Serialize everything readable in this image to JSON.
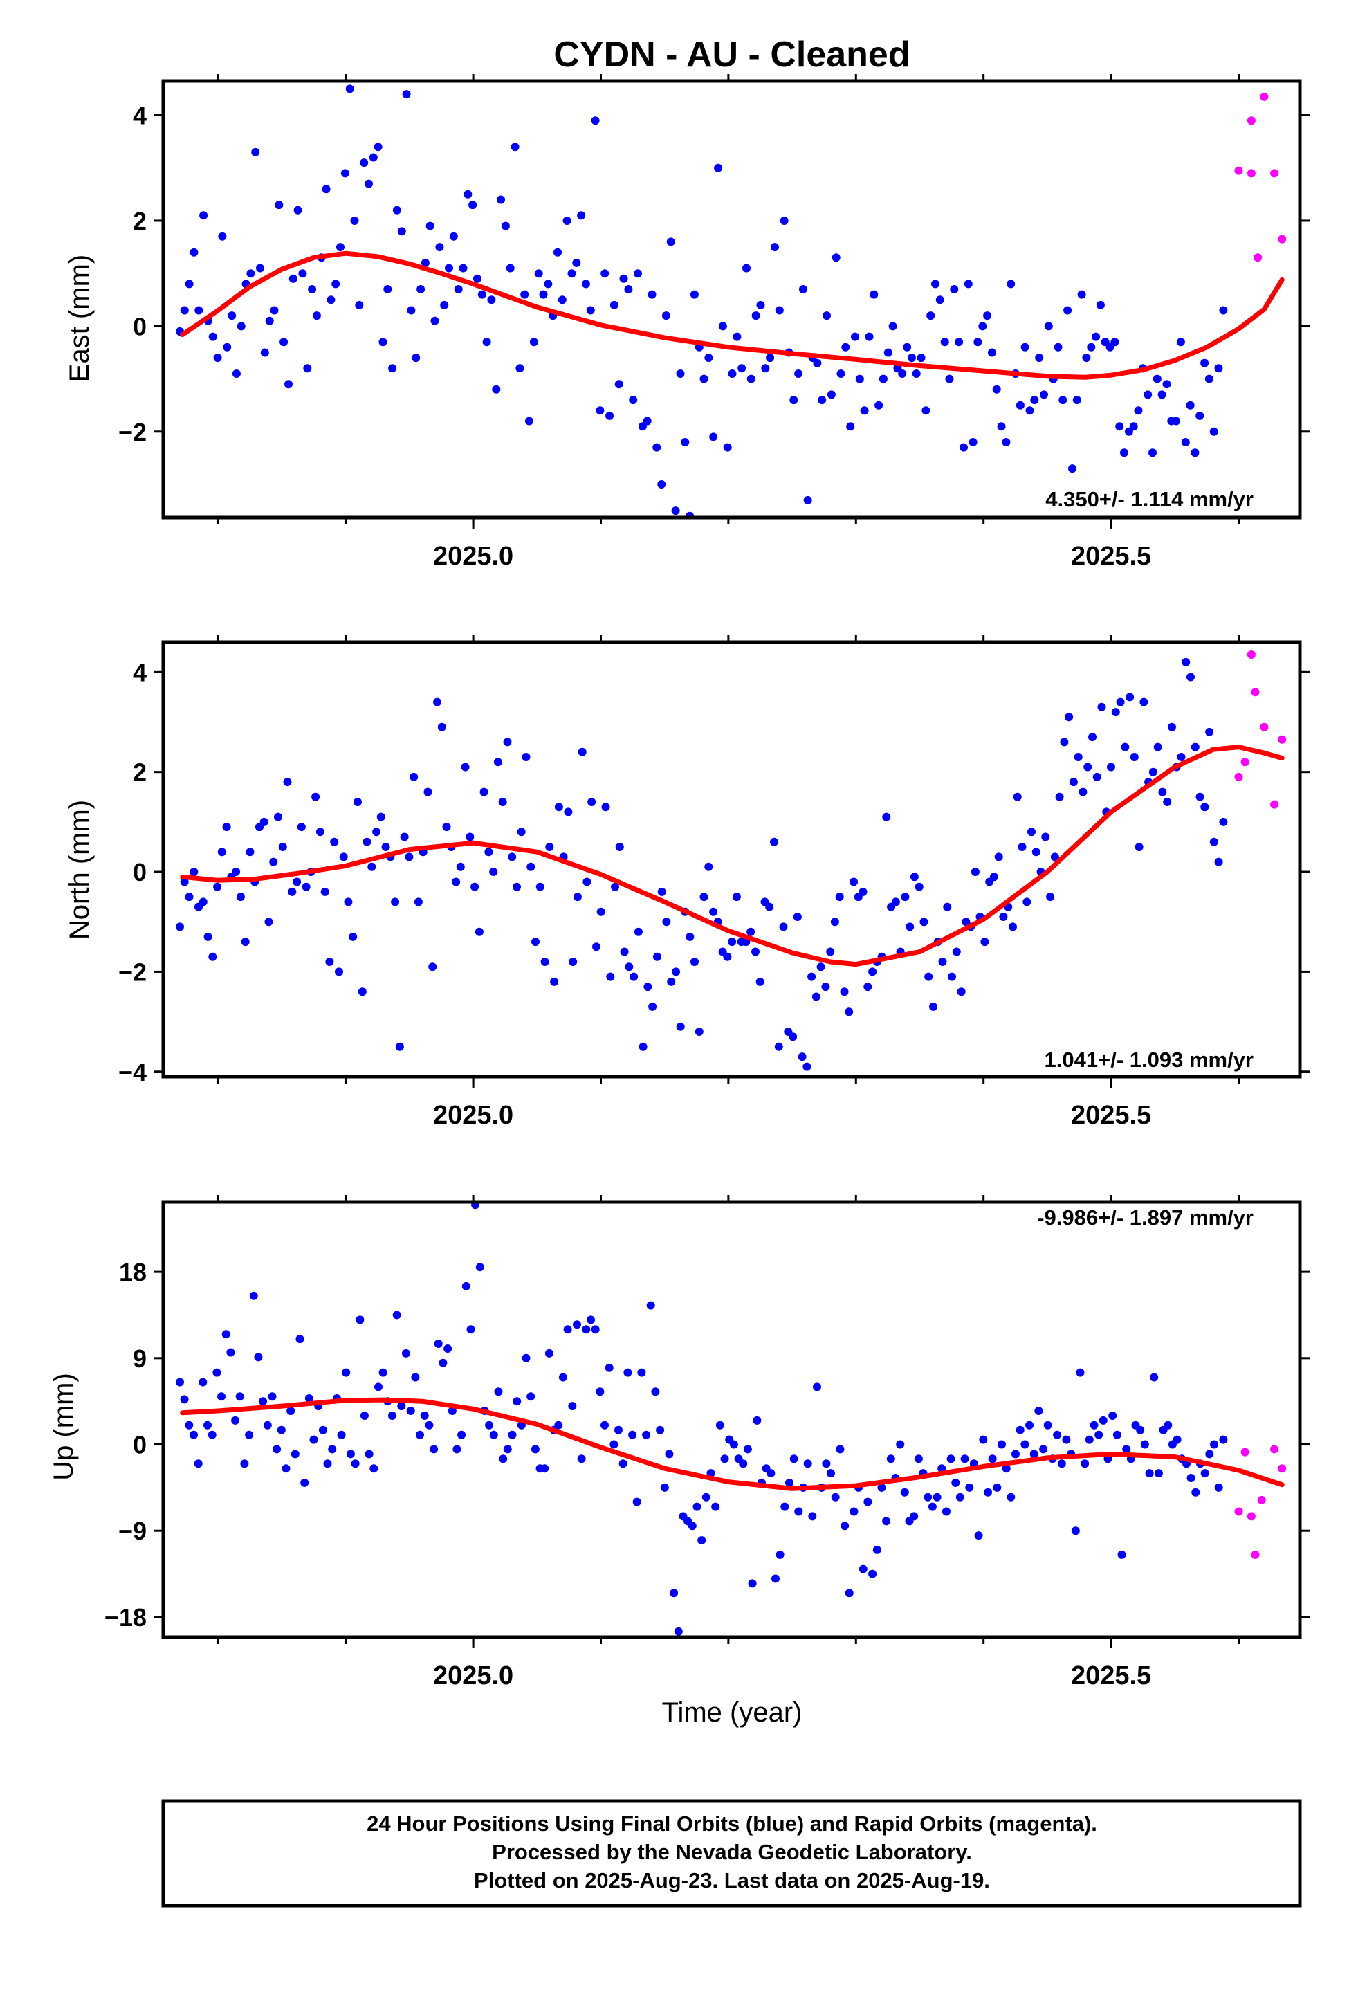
{
  "title": "CYDN  - AU - Cleaned",
  "xlabel": "Time (year)",
  "footer": {
    "line1": "24 Hour Positions Using Final Orbits (blue) and Rapid Orbits (magenta).",
    "line2": "Processed by the Nevada Geodetic Laboratory.",
    "line3": "Plotted on 2025-Aug-23. Last data on 2025-Aug-19."
  },
  "colors": {
    "final": "#0000ff",
    "rapid": "#ff00ff",
    "fit": "#ff0000",
    "frame": "#000000"
  },
  "chart_data": [
    {
      "type": "scatter",
      "name": "east",
      "ylabel": "East (mm)",
      "rate_text": "4.350+/- 1.114 mm/yr",
      "rate_position": "bottom-right",
      "xlim": [
        24.757,
        25.648
      ],
      "ylim": [
        -3.63,
        4.65
      ],
      "yticks": [
        4,
        2,
        0,
        -2
      ],
      "xticks": [
        25.0,
        25.5
      ],
      "xtick_labels": [
        "2025.0",
        "2025.5"
      ],
      "final_y": [
        -0.1,
        0.3,
        0.8,
        1.4,
        0.3,
        2.1,
        0.1,
        -0.2,
        -0.6,
        1.7,
        -0.4,
        0.2,
        -0.9,
        0.0,
        0.8,
        1.0,
        3.3,
        1.1,
        -0.5,
        0.1,
        0.3,
        2.3,
        -0.3,
        -1.1,
        0.9,
        2.2,
        1.0,
        -0.8,
        0.7,
        0.2,
        1.3,
        2.6,
        0.5,
        0.8,
        1.5,
        2.9,
        4.5,
        2.0,
        0.4,
        3.1,
        2.7,
        3.2,
        3.4,
        -0.3,
        0.7,
        -0.8,
        2.2,
        1.8,
        4.4,
        0.3,
        -0.6,
        0.7,
        1.2,
        1.9,
        0.1,
        1.5,
        0.4,
        1.1,
        1.7,
        0.7,
        1.1,
        2.5,
        2.3,
        0.9,
        0.6,
        -0.3,
        0.5,
        -1.2,
        2.4,
        1.9,
        1.1,
        3.4,
        -0.8,
        0.6,
        -1.8,
        -0.3,
        1.0,
        0.6,
        0.8,
        0.2,
        1.4,
        0.5,
        2.0,
        1.0,
        1.2,
        2.1,
        0.8,
        0.3,
        3.9,
        -1.6,
        1.0,
        -1.7,
        0.4,
        -1.1,
        0.9,
        0.7,
        -1.4,
        1.0,
        -1.9,
        -1.8,
        0.6,
        -2.3,
        -3.0,
        0.2,
        1.6,
        -3.5,
        -0.9,
        -2.2,
        -3.6,
        0.6,
        -0.4,
        -1.0,
        -0.6,
        -2.1,
        3.0,
        0.0,
        -2.3,
        -0.9,
        -0.2,
        -0.8,
        1.1,
        -1.0,
        0.2,
        0.4,
        -0.8,
        -0.6,
        1.5,
        0.3,
        2.0,
        -0.5,
        -1.4,
        -0.9,
        0.7,
        -3.3,
        -0.6,
        -0.7,
        -1.4,
        0.2,
        -1.3,
        1.3,
        -0.9,
        -0.4,
        -1.9,
        -0.2,
        -1.0,
        -1.6,
        -0.2,
        0.6,
        -1.5,
        -1.0,
        -0.5,
        0.0,
        -0.8,
        -0.9,
        -0.4,
        -0.6,
        -0.9,
        -0.6,
        -1.6,
        0.2,
        0.8,
        0.5,
        -0.3,
        -1.0,
        0.7,
        -0.3,
        -2.3,
        0.8,
        -2.2,
        -0.3,
        0.0,
        0.2,
        -0.5,
        -1.2,
        -1.9,
        -2.2,
        0.8,
        -0.9,
        -1.5,
        -0.4,
        -1.6,
        -1.4,
        -0.6,
        -1.3,
        0.0,
        -1.0,
        -0.4,
        -1.4,
        0.3,
        -2.7,
        -1.4,
        0.6,
        -0.6,
        -0.4,
        -0.2,
        0.4,
        -0.3,
        -0.4,
        -0.3,
        -1.9,
        -2.4,
        -2.0,
        -1.9,
        -1.6,
        -0.8,
        -1.3,
        -2.4,
        -1.0,
        -1.3,
        -1.1,
        -1.8,
        -1.8,
        -0.3,
        -2.2,
        -1.5,
        -2.4,
        -1.7,
        -0.7,
        -1.0,
        -2.0,
        -0.8,
        0.3
      ],
      "rapid": [
        {
          "x": 25.6,
          "y": 2.95
        },
        {
          "x": 25.61,
          "y": 3.9
        },
        {
          "x": 25.615,
          "y": 1.3
        },
        {
          "x": 25.61,
          "y": 2.9
        },
        {
          "x": 25.62,
          "y": 4.35
        },
        {
          "x": 25.628,
          "y": 2.9
        },
        {
          "x": 25.634,
          "y": 1.65
        }
      ],
      "fit": [
        {
          "x": 24.772,
          "y": -0.16
        },
        {
          "x": 24.8,
          "y": 0.3
        },
        {
          "x": 24.825,
          "y": 0.75
        },
        {
          "x": 24.85,
          "y": 1.08
        },
        {
          "x": 24.875,
          "y": 1.3
        },
        {
          "x": 24.9,
          "y": 1.38
        },
        {
          "x": 24.925,
          "y": 1.32
        },
        {
          "x": 24.95,
          "y": 1.18
        },
        {
          "x": 24.975,
          "y": 1.0
        },
        {
          "x": 25.0,
          "y": 0.8
        },
        {
          "x": 25.05,
          "y": 0.36
        },
        {
          "x": 25.1,
          "y": 0.02
        },
        {
          "x": 25.15,
          "y": -0.22
        },
        {
          "x": 25.2,
          "y": -0.4
        },
        {
          "x": 25.25,
          "y": -0.52
        },
        {
          "x": 25.3,
          "y": -0.63
        },
        {
          "x": 25.35,
          "y": -0.75
        },
        {
          "x": 25.4,
          "y": -0.85
        },
        {
          "x": 25.45,
          "y": -0.95
        },
        {
          "x": 25.48,
          "y": -0.97
        },
        {
          "x": 25.5,
          "y": -0.93
        },
        {
          "x": 25.525,
          "y": -0.83
        },
        {
          "x": 25.55,
          "y": -0.65
        },
        {
          "x": 25.575,
          "y": -0.4
        },
        {
          "x": 25.6,
          "y": -0.05
        },
        {
          "x": 25.62,
          "y": 0.32
        },
        {
          "x": 25.634,
          "y": 0.88
        }
      ]
    },
    {
      "type": "scatter",
      "name": "north",
      "ylabel": "North (mm)",
      "rate_text": "1.041+/- 1.093 mm/yr",
      "rate_position": "bottom-right",
      "xlim": [
        24.757,
        25.648
      ],
      "ylim": [
        -4.1,
        4.6
      ],
      "yticks": [
        4,
        2,
        0,
        -2,
        -4
      ],
      "xticks": [
        25.0,
        25.5
      ],
      "xtick_labels": [
        "2025.0",
        "2025.5"
      ],
      "final_y": [
        -1.1,
        -0.2,
        -0.5,
        0.0,
        -0.7,
        -0.6,
        -1.3,
        -1.7,
        -0.3,
        0.4,
        0.9,
        -0.1,
        0.0,
        -0.5,
        -1.4,
        0.4,
        -0.2,
        0.9,
        1.0,
        -1.0,
        0.2,
        1.1,
        0.5,
        1.8,
        -0.4,
        -0.2,
        0.9,
        -0.3,
        0.0,
        1.5,
        0.8,
        -0.4,
        -1.8,
        0.6,
        -2.0,
        0.3,
        -0.6,
        -1.3,
        1.4,
        -2.4,
        0.6,
        0.1,
        0.8,
        1.1,
        0.5,
        0.3,
        -0.6,
        -3.5,
        0.7,
        0.3,
        1.9,
        -0.6,
        0.4,
        1.6,
        -1.9,
        3.4,
        2.9,
        0.9,
        0.5,
        -0.2,
        0.1,
        2.1,
        0.7,
        -0.3,
        -1.2,
        1.6,
        0.4,
        0.0,
        2.2,
        1.4,
        2.6,
        0.3,
        -0.3,
        0.8,
        2.3,
        0.1,
        -1.4,
        -0.3,
        -1.8,
        0.5,
        -2.2,
        1.3,
        0.3,
        1.2,
        -1.8,
        -0.5,
        2.4,
        -0.2,
        1.4,
        -1.5,
        -0.8,
        1.3,
        -2.1,
        -0.3,
        0.5,
        -1.6,
        -1.9,
        -2.1,
        -1.2,
        -3.5,
        -2.3,
        -2.7,
        -1.7,
        -0.4,
        -1.0,
        -2.2,
        -2.0,
        -3.1,
        -0.8,
        -1.3,
        -1.8,
        -3.2,
        -0.5,
        0.1,
        -0.8,
        -1.0,
        -1.6,
        -1.7,
        -1.4,
        -0.5,
        -1.4,
        -1.4,
        -1.2,
        -1.6,
        -2.2,
        -0.6,
        -0.7,
        0.6,
        -3.5,
        -1.1,
        -3.2,
        -3.3,
        -0.9,
        -3.7,
        -3.9,
        -2.1,
        -2.5,
        -1.9,
        -2.3,
        -1.6,
        -1.0,
        -0.5,
        -2.4,
        -2.8,
        -0.2,
        -0.5,
        -0.4,
        -2.3,
        -2.0,
        -1.8,
        -1.7,
        1.1,
        -0.7,
        -0.6,
        -1.6,
        -0.5,
        -1.1,
        -0.1,
        -0.3,
        -1.0,
        -2.1,
        -2.7,
        -1.4,
        -1.8,
        -0.7,
        -2.1,
        -1.6,
        -2.4,
        -1.0,
        -1.1,
        0.0,
        -0.9,
        -1.4,
        -0.2,
        -0.1,
        0.3,
        -0.9,
        -0.7,
        -1.1,
        1.5,
        0.5,
        -0.6,
        0.8,
        0.4,
        0.0,
        0.7,
        -0.5,
        0.3,
        1.5,
        2.6,
        3.1,
        1.8,
        2.3,
        1.6,
        2.1,
        2.7,
        1.9,
        3.3,
        1.2,
        2.1,
        3.2,
        3.4,
        2.5,
        3.5,
        2.3,
        0.5,
        3.4,
        1.8,
        2.0,
        2.5,
        1.6,
        1.4,
        2.9,
        2.1,
        2.3,
        4.2,
        3.9,
        2.5,
        1.5,
        1.3,
        2.8,
        0.6,
        0.2,
        1.0
      ],
      "rapid": [
        {
          "x": 25.6,
          "y": 1.9
        },
        {
          "x": 25.605,
          "y": 2.2
        },
        {
          "x": 25.61,
          "y": 4.35
        },
        {
          "x": 25.613,
          "y": 3.6
        },
        {
          "x": 25.62,
          "y": 2.9
        },
        {
          "x": 25.628,
          "y": 1.35
        },
        {
          "x": 25.634,
          "y": 2.65
        }
      ],
      "fit": [
        {
          "x": 24.772,
          "y": -0.1
        },
        {
          "x": 24.8,
          "y": -0.17
        },
        {
          "x": 24.83,
          "y": -0.14
        },
        {
          "x": 24.86,
          "y": -0.04
        },
        {
          "x": 24.9,
          "y": 0.12
        },
        {
          "x": 24.95,
          "y": 0.45
        },
        {
          "x": 25.0,
          "y": 0.58
        },
        {
          "x": 25.05,
          "y": 0.4
        },
        {
          "x": 25.1,
          "y": -0.05
        },
        {
          "x": 25.15,
          "y": -0.6
        },
        {
          "x": 25.2,
          "y": -1.18
        },
        {
          "x": 25.25,
          "y": -1.62
        },
        {
          "x": 25.28,
          "y": -1.8
        },
        {
          "x": 25.3,
          "y": -1.85
        },
        {
          "x": 25.35,
          "y": -1.6
        },
        {
          "x": 25.4,
          "y": -0.95
        },
        {
          "x": 25.45,
          "y": 0.0
        },
        {
          "x": 25.5,
          "y": 1.2
        },
        {
          "x": 25.55,
          "y": 2.1
        },
        {
          "x": 25.58,
          "y": 2.45
        },
        {
          "x": 25.6,
          "y": 2.5
        },
        {
          "x": 25.62,
          "y": 2.38
        },
        {
          "x": 25.634,
          "y": 2.28
        }
      ]
    },
    {
      "type": "scatter",
      "name": "up",
      "ylabel": "Up (mm)",
      "rate_text": "-9.986+/- 1.897 mm/yr",
      "rate_position": "top-right",
      "xlim": [
        24.757,
        25.648
      ],
      "ylim": [
        -20.1,
        25.3
      ],
      "yticks": [
        18,
        9,
        0,
        -9,
        -18
      ],
      "xticks": [
        25.0,
        25.5
      ],
      "xtick_labels": [
        "2025.0",
        "2025.5"
      ],
      "final_y": [
        6.5,
        4.7,
        2.0,
        1.0,
        -2.0,
        6.5,
        2.0,
        1.0,
        7.5,
        5.0,
        11.5,
        9.6,
        2.5,
        5.0,
        -2.0,
        1.0,
        15.5,
        9.1,
        4.5,
        2.0,
        5.0,
        -0.5,
        1.5,
        -2.5,
        3.5,
        -1.0,
        11.0,
        -4.0,
        4.8,
        0.5,
        4.0,
        1.5,
        -2.0,
        -0.5,
        4.8,
        1.0,
        7.5,
        -1.0,
        -2.0,
        13.0,
        3.0,
        -1.0,
        -2.5,
        6.0,
        7.5,
        4.5,
        3.0,
        13.5,
        4.0,
        9.5,
        3.5,
        7.0,
        1.0,
        3.0,
        2.0,
        -0.5,
        10.5,
        8.5,
        10.0,
        3.5,
        -0.5,
        1.0,
        16.5,
        12.0,
        25.0,
        18.5,
        3.5,
        2.0,
        1.0,
        5.5,
        -1.5,
        -0.5,
        1.0,
        4.5,
        2.0,
        9.0,
        5.0,
        -0.5,
        -2.5,
        -2.5,
        9.5,
        1.5,
        2.0,
        7.0,
        12.0,
        4.0,
        12.5,
        -1.5,
        12.0,
        13.0,
        12.0,
        5.5,
        2.0,
        8.0,
        0.0,
        1.5,
        -2.0,
        7.5,
        1.0,
        -6.0,
        7.5,
        1.0,
        14.5,
        5.5,
        1.5,
        -4.5,
        -1.0,
        -15.5,
        -19.5,
        -7.5,
        -8.0,
        -8.5,
        -6.5,
        -10.0,
        -5.5,
        -3.0,
        -6.5,
        2.0,
        -1.5,
        0.5,
        0.0,
        -1.5,
        -2.0,
        -0.5,
        -14.5,
        2.5,
        -4.0,
        -2.5,
        -3.0,
        -14.0,
        -11.5,
        -6.5,
        -4.0,
        -1.5,
        -7.0,
        -4.5,
        -2.0,
        -7.5,
        6.0,
        -4.5,
        -2.0,
        -3.0,
        -5.5,
        -0.5,
        -8.5,
        -15.5,
        -7.0,
        -4.5,
        -13.0,
        -6.0,
        -13.5,
        -11.0,
        -4.5,
        -8.0,
        -1.5,
        -3.5,
        0.0,
        -5.0,
        -8.0,
        -7.5,
        -1.5,
        -3.0,
        -5.5,
        -6.5,
        -5.5,
        -2.5,
        -7.0,
        -1.5,
        -4.0,
        -5.5,
        -1.5,
        -4.5,
        -2.0,
        -9.5,
        0.5,
        -5.0,
        -1.5,
        -4.5,
        0.0,
        -2.5,
        -5.5,
        -1.0,
        1.5,
        0.0,
        2.0,
        -1.0,
        3.5,
        -0.5,
        2.0,
        -1.5,
        1.0,
        -2.0,
        0.5,
        -1.0,
        -9.0,
        7.5,
        -2.0,
        0.5,
        2.0,
        1.0,
        2.5,
        -1.5,
        3.0,
        1.0,
        -11.5,
        -0.5,
        -1.5,
        2.0,
        1.5,
        0.0,
        -3.0,
        7.0,
        -3.0,
        1.5,
        2.0,
        0.0,
        0.5,
        -1.5,
        -2.0,
        -3.5,
        -5.0,
        -2.0,
        -3.0,
        -1.0,
        0.0,
        -4.5,
        0.5
      ],
      "rapid": [
        {
          "x": 25.6,
          "y": -7.0
        },
        {
          "x": 25.605,
          "y": -0.8
        },
        {
          "x": 25.61,
          "y": -7.5
        },
        {
          "x": 25.613,
          "y": -11.5
        },
        {
          "x": 25.618,
          "y": -5.8
        },
        {
          "x": 25.628,
          "y": -0.5
        },
        {
          "x": 25.634,
          "y": -2.5
        }
      ],
      "fit": [
        {
          "x": 24.772,
          "y": 3.3
        },
        {
          "x": 24.8,
          "y": 3.5
        },
        {
          "x": 24.85,
          "y": 4.0
        },
        {
          "x": 24.9,
          "y": 4.6
        },
        {
          "x": 24.93,
          "y": 4.65
        },
        {
          "x": 24.96,
          "y": 4.5
        },
        {
          "x": 25.0,
          "y": 3.7
        },
        {
          "x": 25.05,
          "y": 2.1
        },
        {
          "x": 25.1,
          "y": -0.3
        },
        {
          "x": 25.15,
          "y": -2.5
        },
        {
          "x": 25.2,
          "y": -3.9
        },
        {
          "x": 25.25,
          "y": -4.6
        },
        {
          "x": 25.3,
          "y": -4.3
        },
        {
          "x": 25.35,
          "y": -3.4
        },
        {
          "x": 25.4,
          "y": -2.3
        },
        {
          "x": 25.45,
          "y": -1.4
        },
        {
          "x": 25.5,
          "y": -1.0
        },
        {
          "x": 25.55,
          "y": -1.3
        },
        {
          "x": 25.6,
          "y": -2.7
        },
        {
          "x": 25.634,
          "y": -4.2
        }
      ]
    }
  ]
}
